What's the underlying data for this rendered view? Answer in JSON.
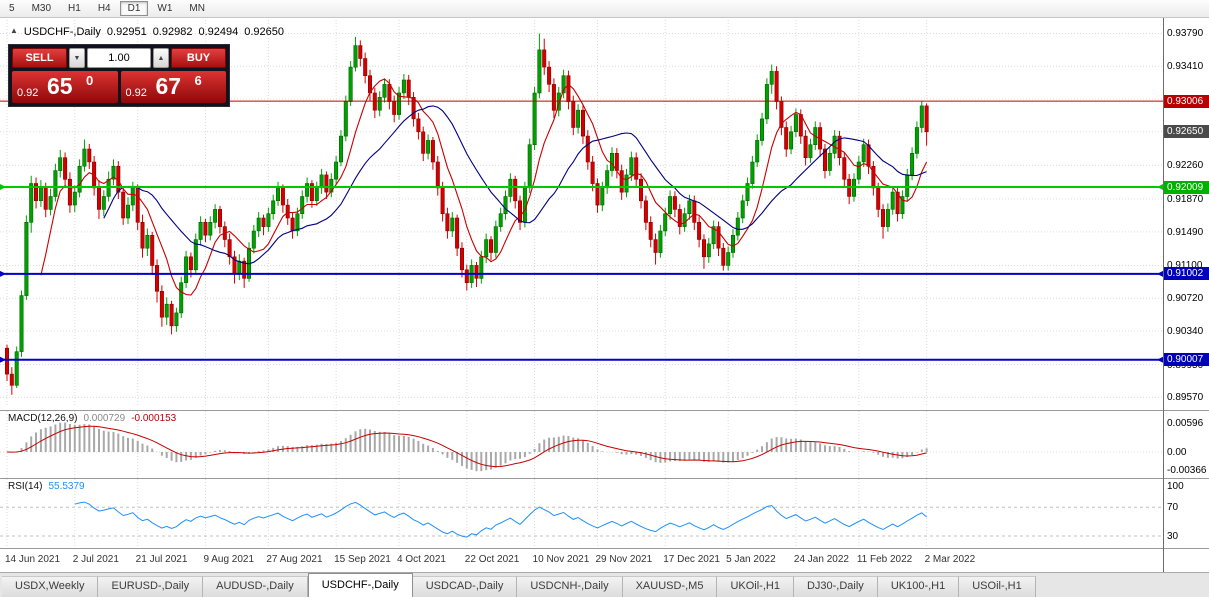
{
  "toolbar": {
    "timeframes": [
      {
        "label": "5",
        "active": false
      },
      {
        "label": "M30",
        "active": false
      },
      {
        "label": "H1",
        "active": false
      },
      {
        "label": "H4",
        "active": false
      },
      {
        "label": "D1",
        "active": true
      },
      {
        "label": "W1",
        "active": false
      },
      {
        "label": "MN",
        "active": false
      }
    ]
  },
  "chart_header": {
    "collapse_icon": "▲",
    "title": "USDCHF-,Daily",
    "open": "0.92951",
    "high": "0.92982",
    "low": "0.92494",
    "close": "0.92650"
  },
  "trade_panel": {
    "sell_label": "SELL",
    "buy_label": "BUY",
    "volume": "1.00",
    "sell_price_small": "0.92",
    "sell_price_big": "65",
    "sell_price_sup": "0",
    "buy_price_small": "0.92",
    "buy_price_big": "67",
    "buy_price_sup": "6"
  },
  "price_axis": {
    "ticks": [
      0.9379,
      0.9341,
      0.9303,
      0.9265,
      0.9226,
      0.9187,
      0.9149,
      0.911,
      0.9072,
      0.9034,
      0.8995,
      0.8957
    ],
    "badges": [
      {
        "price": 0.93006,
        "color": "#b80000",
        "text_color": "#ffffff"
      },
      {
        "price": 0.9265,
        "color": "#4a4a4a",
        "text_color": "#ffffff"
      },
      {
        "price": 0.92009,
        "color": "#00b000",
        "text_color": "#ffffff"
      },
      {
        "price": 0.91002,
        "color": "#0000b8",
        "text_color": "#ffffff"
      },
      {
        "price": 0.90007,
        "color": "#0000b8",
        "text_color": "#ffffff"
      }
    ]
  },
  "chart_data": {
    "type": "candlestick",
    "title": "USDCHF-,Daily",
    "x_labels": [
      "14 Jun 2021",
      "2 Jul 2021",
      "21 Jul 2021",
      "9 Aug 2021",
      "27 Aug 2021",
      "15 Sep 2021",
      "4 Oct 2021",
      "22 Oct 2021",
      "10 Nov 2021",
      "29 Nov 2021",
      "17 Dec 2021",
      "5 Jan 2022",
      "24 Jan 2022",
      "11 Feb 2022",
      "2 Mar 2022"
    ],
    "y_range": [
      0.8947,
      0.939
    ],
    "up_color": "#00a000",
    "down_color": "#d40000",
    "hlines": [
      {
        "price": 0.93006,
        "color": "#c00000",
        "width": 1,
        "arrows": false
      },
      {
        "price": 0.92009,
        "color": "#00c800",
        "width": 2,
        "arrows": true
      },
      {
        "price": 0.91002,
        "color": "#0000c8",
        "width": 2,
        "arrows": true
      },
      {
        "price": 0.90007,
        "color": "#0000c8",
        "width": 2,
        "arrows": true
      }
    ],
    "moving_averages": [
      {
        "period": 8,
        "color": "#c80000"
      },
      {
        "period": 21,
        "color": "#000080"
      }
    ],
    "candles": [
      [
        0.9014,
        0.9018,
        0.8976,
        0.8984
      ],
      [
        0.8984,
        0.8992,
        0.896,
        0.8971
      ],
      [
        0.8971,
        0.9016,
        0.8968,
        0.901
      ],
      [
        0.901,
        0.9081,
        0.9004,
        0.9075
      ],
      [
        0.9075,
        0.9168,
        0.907,
        0.916
      ],
      [
        0.916,
        0.9214,
        0.9148,
        0.9205
      ],
      [
        0.9205,
        0.9212,
        0.9176,
        0.9185
      ],
      [
        0.9185,
        0.9209,
        0.9178,
        0.92
      ],
      [
        0.92,
        0.9206,
        0.9166,
        0.9175
      ],
      [
        0.9175,
        0.9199,
        0.9168,
        0.919
      ],
      [
        0.919,
        0.9228,
        0.9184,
        0.922
      ],
      [
        0.922,
        0.9244,
        0.9212,
        0.9235
      ],
      [
        0.9235,
        0.9241,
        0.9201,
        0.921
      ],
      [
        0.921,
        0.9218,
        0.9171,
        0.918
      ],
      [
        0.918,
        0.9203,
        0.9172,
        0.9195
      ],
      [
        0.9195,
        0.9233,
        0.9189,
        0.9225
      ],
      [
        0.9225,
        0.9256,
        0.9219,
        0.9245
      ],
      [
        0.9245,
        0.9251,
        0.9222,
        0.923
      ],
      [
        0.923,
        0.9237,
        0.9191,
        0.92
      ],
      [
        0.92,
        0.9209,
        0.9164,
        0.9175
      ],
      [
        0.9175,
        0.9197,
        0.9167,
        0.919
      ],
      [
        0.919,
        0.9219,
        0.9184,
        0.921
      ],
      [
        0.921,
        0.9233,
        0.9203,
        0.9225
      ],
      [
        0.9225,
        0.9231,
        0.9187,
        0.9195
      ],
      [
        0.9195,
        0.9201,
        0.9157,
        0.9165
      ],
      [
        0.9165,
        0.9189,
        0.9158,
        0.918
      ],
      [
        0.918,
        0.9207,
        0.9173,
        0.92
      ],
      [
        0.92,
        0.9204,
        0.9151,
        0.916
      ],
      [
        0.916,
        0.9169,
        0.9119,
        0.913
      ],
      [
        0.913,
        0.9153,
        0.9121,
        0.9145
      ],
      [
        0.9145,
        0.9149,
        0.9099,
        0.911
      ],
      [
        0.911,
        0.9117,
        0.9067,
        0.908
      ],
      [
        0.908,
        0.9087,
        0.9039,
        0.905
      ],
      [
        0.905,
        0.9073,
        0.9041,
        0.9065
      ],
      [
        0.9065,
        0.9069,
        0.903,
        0.904
      ],
      [
        0.904,
        0.9061,
        0.9033,
        0.9055
      ],
      [
        0.9055,
        0.9097,
        0.9049,
        0.909
      ],
      [
        0.909,
        0.9127,
        0.9084,
        0.912
      ],
      [
        0.912,
        0.9125,
        0.9096,
        0.9105
      ],
      [
        0.9105,
        0.9147,
        0.9099,
        0.914
      ],
      [
        0.914,
        0.9167,
        0.9133,
        0.916
      ],
      [
        0.916,
        0.9164,
        0.9137,
        0.9145
      ],
      [
        0.9145,
        0.9167,
        0.9139,
        0.916
      ],
      [
        0.916,
        0.9181,
        0.9153,
        0.9175
      ],
      [
        0.9175,
        0.9179,
        0.9147,
        0.9155
      ],
      [
        0.9155,
        0.9161,
        0.9131,
        0.914
      ],
      [
        0.914,
        0.9147,
        0.9111,
        0.912
      ],
      [
        0.912,
        0.9127,
        0.9089,
        0.91
      ],
      [
        0.91,
        0.9123,
        0.9093,
        0.9115
      ],
      [
        0.9115,
        0.9119,
        0.9084,
        0.9095
      ],
      [
        0.9095,
        0.9137,
        0.9091,
        0.913
      ],
      [
        0.913,
        0.9157,
        0.9124,
        0.915
      ],
      [
        0.915,
        0.9172,
        0.9143,
        0.9165
      ],
      [
        0.9165,
        0.9169,
        0.9145,
        0.9155
      ],
      [
        0.9155,
        0.9177,
        0.9149,
        0.917
      ],
      [
        0.917,
        0.9192,
        0.9163,
        0.9185
      ],
      [
        0.9185,
        0.9207,
        0.9179,
        0.92
      ],
      [
        0.92,
        0.9204,
        0.9171,
        0.918
      ],
      [
        0.918,
        0.9187,
        0.9157,
        0.9165
      ],
      [
        0.9165,
        0.9171,
        0.9141,
        0.915
      ],
      [
        0.915,
        0.9177,
        0.9144,
        0.917
      ],
      [
        0.917,
        0.9197,
        0.9164,
        0.919
      ],
      [
        0.919,
        0.9212,
        0.9183,
        0.9205
      ],
      [
        0.9205,
        0.9209,
        0.9177,
        0.9185
      ],
      [
        0.9185,
        0.9207,
        0.9179,
        0.92
      ],
      [
        0.92,
        0.9222,
        0.9193,
        0.9215
      ],
      [
        0.9215,
        0.9219,
        0.9187,
        0.9195
      ],
      [
        0.9195,
        0.9217,
        0.9189,
        0.921
      ],
      [
        0.921,
        0.9237,
        0.9204,
        0.923
      ],
      [
        0.923,
        0.9267,
        0.9225,
        0.926
      ],
      [
        0.926,
        0.9307,
        0.9254,
        0.93
      ],
      [
        0.93,
        0.9347,
        0.9295,
        0.934
      ],
      [
        0.934,
        0.9375,
        0.9335,
        0.9365
      ],
      [
        0.9365,
        0.9371,
        0.9341,
        0.935
      ],
      [
        0.935,
        0.9357,
        0.9321,
        0.933
      ],
      [
        0.933,
        0.9337,
        0.9301,
        0.931
      ],
      [
        0.931,
        0.9316,
        0.9281,
        0.929
      ],
      [
        0.929,
        0.9312,
        0.9283,
        0.9305
      ],
      [
        0.9305,
        0.9327,
        0.9299,
        0.932
      ],
      [
        0.932,
        0.9326,
        0.9291,
        0.93
      ],
      [
        0.93,
        0.9307,
        0.9276,
        0.9285
      ],
      [
        0.9285,
        0.9317,
        0.9279,
        0.931
      ],
      [
        0.931,
        0.9332,
        0.9303,
        0.9325
      ],
      [
        0.9325,
        0.9331,
        0.9296,
        0.9305
      ],
      [
        0.9305,
        0.9311,
        0.9271,
        0.928
      ],
      [
        0.928,
        0.9287,
        0.9256,
        0.9265
      ],
      [
        0.9265,
        0.9271,
        0.9231,
        0.924
      ],
      [
        0.924,
        0.9262,
        0.9233,
        0.9255
      ],
      [
        0.9255,
        0.9259,
        0.9221,
        0.923
      ],
      [
        0.923,
        0.9237,
        0.9191,
        0.92
      ],
      [
        0.92,
        0.9207,
        0.9161,
        0.917
      ],
      [
        0.917,
        0.9177,
        0.9141,
        0.915
      ],
      [
        0.915,
        0.9172,
        0.9143,
        0.9165
      ],
      [
        0.9165,
        0.9169,
        0.9121,
        0.913
      ],
      [
        0.913,
        0.9137,
        0.9096,
        0.9105
      ],
      [
        0.9105,
        0.9111,
        0.9081,
        0.909
      ],
      [
        0.909,
        0.9117,
        0.9084,
        0.911
      ],
      [
        0.911,
        0.9114,
        0.9085,
        0.9095
      ],
      [
        0.9095,
        0.9127,
        0.9089,
        0.912
      ],
      [
        0.912,
        0.9147,
        0.9113,
        0.914
      ],
      [
        0.914,
        0.9144,
        0.9116,
        0.9125
      ],
      [
        0.9125,
        0.9162,
        0.9119,
        0.9155
      ],
      [
        0.9155,
        0.9177,
        0.9149,
        0.917
      ],
      [
        0.917,
        0.9197,
        0.9163,
        0.919
      ],
      [
        0.919,
        0.9217,
        0.9183,
        0.921
      ],
      [
        0.921,
        0.9214,
        0.9176,
        0.9185
      ],
      [
        0.9185,
        0.9191,
        0.9151,
        0.916
      ],
      [
        0.916,
        0.9207,
        0.9154,
        0.92
      ],
      [
        0.92,
        0.9257,
        0.9194,
        0.925
      ],
      [
        0.925,
        0.9317,
        0.9244,
        0.931
      ],
      [
        0.931,
        0.9379,
        0.9304,
        0.936
      ],
      [
        0.936,
        0.9373,
        0.9331,
        0.934
      ],
      [
        0.934,
        0.9347,
        0.9311,
        0.932
      ],
      [
        0.932,
        0.9327,
        0.9281,
        0.929
      ],
      [
        0.929,
        0.9317,
        0.9283,
        0.931
      ],
      [
        0.931,
        0.9337,
        0.9304,
        0.933
      ],
      [
        0.933,
        0.9336,
        0.9291,
        0.93
      ],
      [
        0.93,
        0.9307,
        0.9261,
        0.927
      ],
      [
        0.927,
        0.9297,
        0.9263,
        0.929
      ],
      [
        0.929,
        0.9296,
        0.9251,
        0.926
      ],
      [
        0.926,
        0.9267,
        0.9221,
        0.923
      ],
      [
        0.923,
        0.9237,
        0.9196,
        0.9205
      ],
      [
        0.9205,
        0.9211,
        0.9171,
        0.918
      ],
      [
        0.918,
        0.9207,
        0.9173,
        0.92
      ],
      [
        0.92,
        0.9227,
        0.9193,
        0.922
      ],
      [
        0.922,
        0.9247,
        0.9213,
        0.924
      ],
      [
        0.924,
        0.9246,
        0.9211,
        0.922
      ],
      [
        0.922,
        0.9227,
        0.9186,
        0.9195
      ],
      [
        0.9195,
        0.9222,
        0.9189,
        0.9215
      ],
      [
        0.9215,
        0.9242,
        0.9208,
        0.9235
      ],
      [
        0.9235,
        0.9241,
        0.9201,
        0.921
      ],
      [
        0.921,
        0.9217,
        0.9176,
        0.9185
      ],
      [
        0.9185,
        0.9191,
        0.9151,
        0.916
      ],
      [
        0.916,
        0.9167,
        0.9131,
        0.914
      ],
      [
        0.914,
        0.9147,
        0.9111,
        0.9125
      ],
      [
        0.9125,
        0.9157,
        0.9119,
        0.915
      ],
      [
        0.915,
        0.9177,
        0.9144,
        0.917
      ],
      [
        0.917,
        0.9197,
        0.9163,
        0.919
      ],
      [
        0.919,
        0.9196,
        0.9166,
        0.9175
      ],
      [
        0.9175,
        0.9181,
        0.9146,
        0.9155
      ],
      [
        0.9155,
        0.9177,
        0.9149,
        0.917
      ],
      [
        0.917,
        0.9192,
        0.9163,
        0.9185
      ],
      [
        0.9185,
        0.9191,
        0.9151,
        0.916
      ],
      [
        0.916,
        0.9167,
        0.9131,
        0.914
      ],
      [
        0.914,
        0.9146,
        0.9106,
        0.912
      ],
      [
        0.912,
        0.9142,
        0.9113,
        0.9135
      ],
      [
        0.9135,
        0.9162,
        0.9129,
        0.9155
      ],
      [
        0.9155,
        0.9161,
        0.9121,
        0.913
      ],
      [
        0.913,
        0.9136,
        0.9104,
        0.911
      ],
      [
        0.911,
        0.9132,
        0.9104,
        0.9125
      ],
      [
        0.9125,
        0.9152,
        0.9119,
        0.9145
      ],
      [
        0.9145,
        0.9172,
        0.9139,
        0.9165
      ],
      [
        0.9165,
        0.9192,
        0.9159,
        0.9185
      ],
      [
        0.9185,
        0.9212,
        0.9179,
        0.9205
      ],
      [
        0.9205,
        0.9237,
        0.9199,
        0.923
      ],
      [
        0.923,
        0.9262,
        0.9224,
        0.9255
      ],
      [
        0.9255,
        0.9287,
        0.9249,
        0.928
      ],
      [
        0.928,
        0.9327,
        0.9274,
        0.932
      ],
      [
        0.932,
        0.9343,
        0.9309,
        0.9335
      ],
      [
        0.9335,
        0.9341,
        0.9291,
        0.93
      ],
      [
        0.93,
        0.9306,
        0.9261,
        0.927
      ],
      [
        0.927,
        0.9277,
        0.9236,
        0.9245
      ],
      [
        0.9245,
        0.9272,
        0.9239,
        0.9265
      ],
      [
        0.9265,
        0.9292,
        0.9259,
        0.9285
      ],
      [
        0.9285,
        0.9291,
        0.9251,
        0.926
      ],
      [
        0.926,
        0.9267,
        0.9226,
        0.9235
      ],
      [
        0.9235,
        0.9257,
        0.9229,
        0.925
      ],
      [
        0.925,
        0.9277,
        0.9244,
        0.927
      ],
      [
        0.927,
        0.9276,
        0.9236,
        0.9245
      ],
      [
        0.9245,
        0.9251,
        0.9211,
        0.922
      ],
      [
        0.922,
        0.9247,
        0.9214,
        0.924
      ],
      [
        0.924,
        0.9267,
        0.9234,
        0.926
      ],
      [
        0.926,
        0.9266,
        0.9226,
        0.9235
      ],
      [
        0.9235,
        0.9241,
        0.9201,
        0.921
      ],
      [
        0.921,
        0.9216,
        0.9181,
        0.919
      ],
      [
        0.919,
        0.9217,
        0.9184,
        0.921
      ],
      [
        0.921,
        0.9237,
        0.9204,
        0.923
      ],
      [
        0.923,
        0.9257,
        0.9224,
        0.925
      ],
      [
        0.925,
        0.9256,
        0.9216,
        0.9225
      ],
      [
        0.9225,
        0.9231,
        0.9191,
        0.92
      ],
      [
        0.92,
        0.9206,
        0.9166,
        0.9175
      ],
      [
        0.9175,
        0.9181,
        0.9141,
        0.9155
      ],
      [
        0.9155,
        0.9182,
        0.9149,
        0.9175
      ],
      [
        0.9175,
        0.9202,
        0.9169,
        0.9195
      ],
      [
        0.9195,
        0.9201,
        0.9161,
        0.917
      ],
      [
        0.917,
        0.9197,
        0.9164,
        0.919
      ],
      [
        0.919,
        0.9222,
        0.9184,
        0.9215
      ],
      [
        0.9215,
        0.9247,
        0.9209,
        0.924
      ],
      [
        0.924,
        0.9277,
        0.9234,
        0.927
      ],
      [
        0.927,
        0.9301,
        0.9264,
        0.9295
      ],
      [
        0.9295,
        0.9298,
        0.9249,
        0.9265
      ]
    ],
    "indicators": {
      "macd": {
        "label": "MACD(12,26,9)",
        "main_value": "0.000729",
        "signal_value": "-0.000153",
        "fast": 12,
        "slow": 26,
        "signal": 9,
        "axis_labels": [
          "0.00596",
          "0.00",
          "-0.00366"
        ],
        "histogram_color": "#a8a8a8",
        "signal_color": "#c80000"
      },
      "rsi": {
        "label": "RSI(14)",
        "value": "55.5379",
        "period": 14,
        "levels": [
          70,
          30
        ],
        "axis_labels": [
          "100",
          "70",
          "30"
        ],
        "line_color": "#1e90ff"
      }
    }
  },
  "tabs": [
    {
      "label": "USDX,Weekly",
      "active": false
    },
    {
      "label": "EURUSD-,Daily",
      "active": false
    },
    {
      "label": "AUDUSD-,Daily",
      "active": false
    },
    {
      "label": "USDCHF-,Daily",
      "active": true
    },
    {
      "label": "USDCAD-,Daily",
      "active": false
    },
    {
      "label": "USDCNH-,Daily",
      "active": false
    },
    {
      "label": "XAUUSD-,M5",
      "active": false
    },
    {
      "label": "UKOil-,H1",
      "active": false
    },
    {
      "label": "DJ30-,Daily",
      "active": false
    },
    {
      "label": "UK100-,H1",
      "active": false
    },
    {
      "label": "USOil-,H1",
      "active": false
    }
  ]
}
